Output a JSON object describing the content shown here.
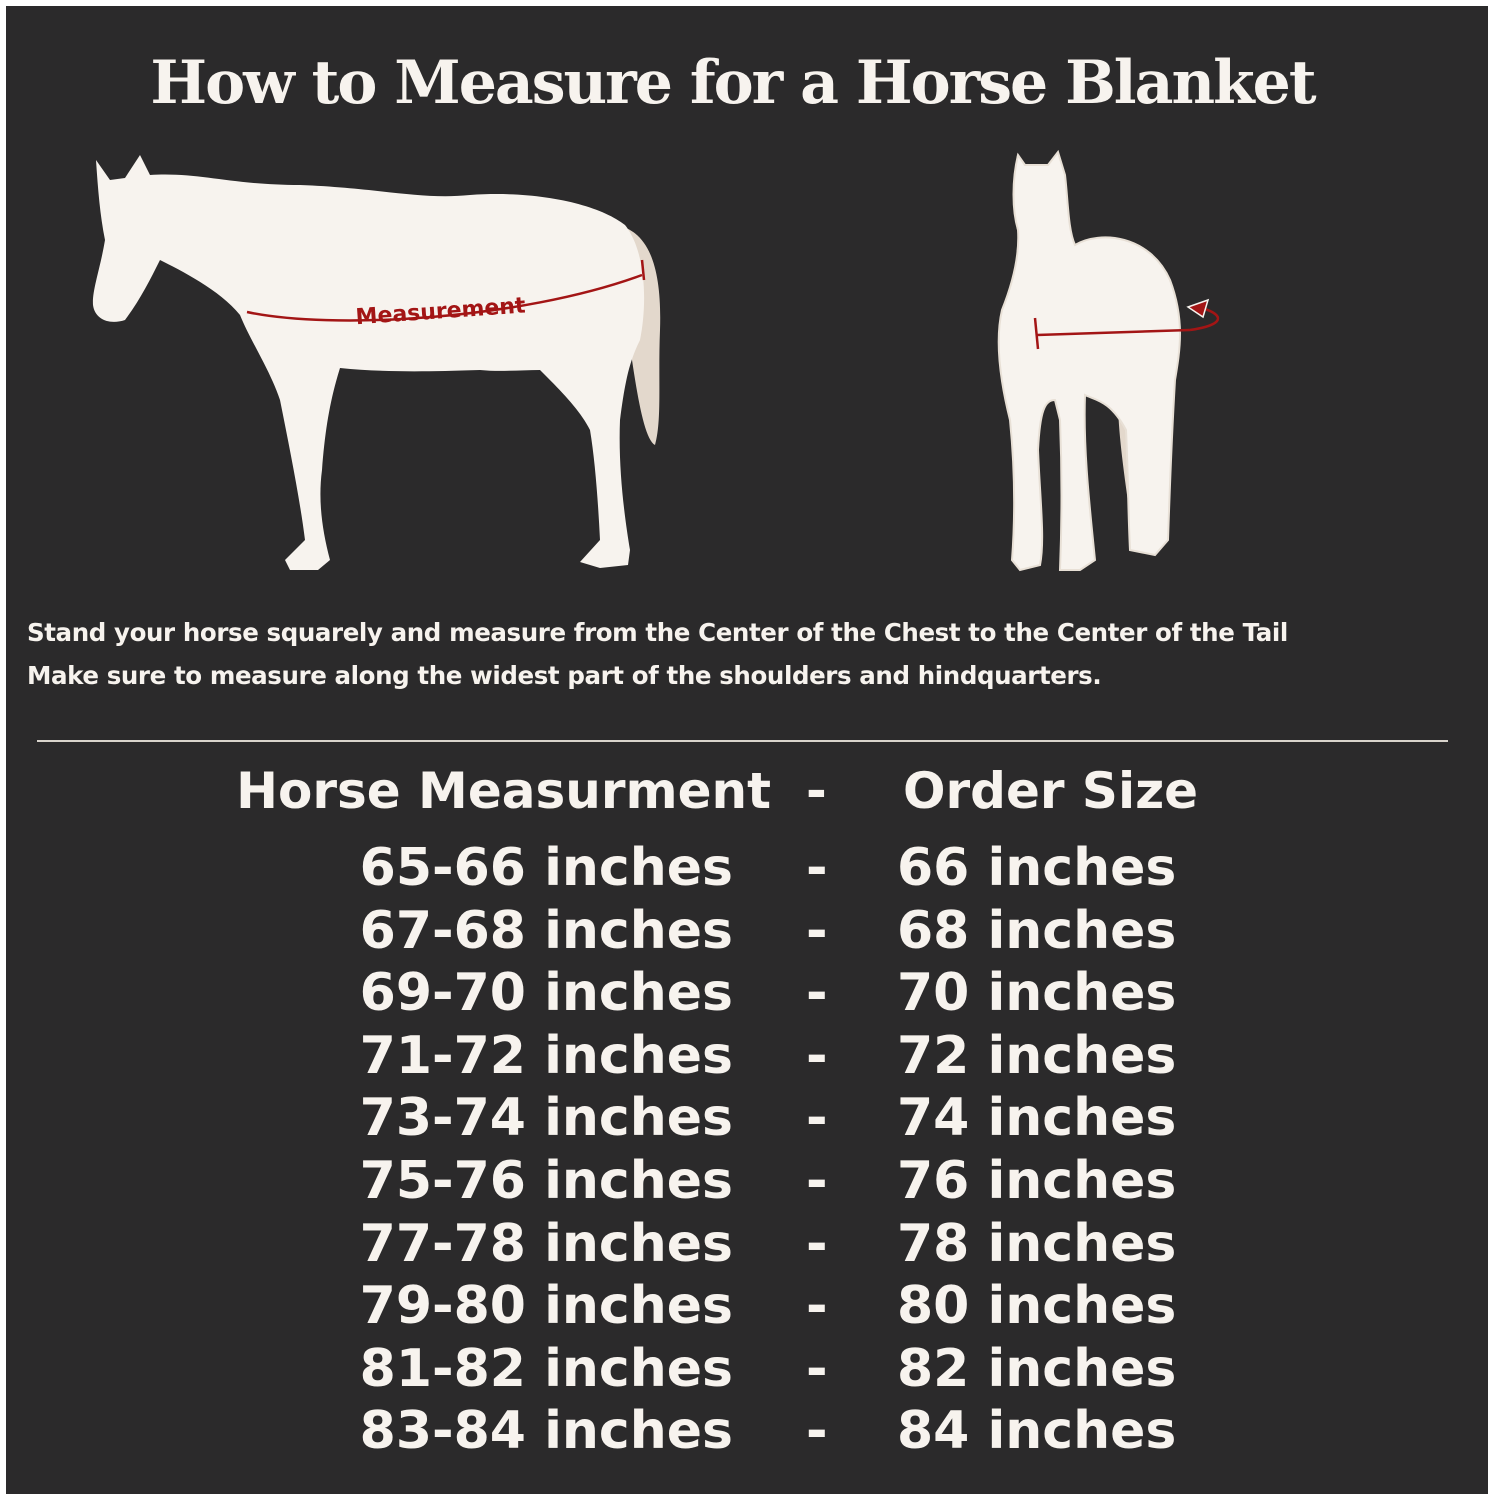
{
  "title": "How to Measure for a Horse Blanket",
  "diagram": {
    "measurement_label": "Measurement",
    "colors": {
      "background": "#2b2a2b",
      "horse": "#f7f3ee",
      "tail": "#e3d8cc",
      "measure_line": "#a31515"
    }
  },
  "instructions": [
    "Stand your horse squarely and measure from the Center of the Chest to the Center of the Tail",
    "Make sure to measure along the widest part of the shoulders and hindquarters."
  ],
  "table": {
    "headers": {
      "measurement": "Horse Measurment",
      "separator": "-",
      "size": "Order Size"
    },
    "rows": [
      {
        "measurement": "65-66 inches",
        "separator": "-",
        "size": "66 inches"
      },
      {
        "measurement": "67-68 inches",
        "separator": "-",
        "size": "68 inches"
      },
      {
        "measurement": "69-70 inches",
        "separator": "-",
        "size": "70 inches"
      },
      {
        "measurement": "71-72 inches",
        "separator": "-",
        "size": "72 inches"
      },
      {
        "measurement": "73-74 inches",
        "separator": "-",
        "size": "74 inches"
      },
      {
        "measurement": "75-76 inches",
        "separator": "-",
        "size": "76 inches"
      },
      {
        "measurement": "77-78 inches",
        "separator": "-",
        "size": "78 inches"
      },
      {
        "measurement": "79-80 inches",
        "separator": "-",
        "size": "80 inches"
      },
      {
        "measurement": "81-82 inches",
        "separator": "-",
        "size": "82 inches"
      },
      {
        "measurement": "83-84 inches",
        "separator": "-",
        "size": "84 inches"
      }
    ]
  }
}
